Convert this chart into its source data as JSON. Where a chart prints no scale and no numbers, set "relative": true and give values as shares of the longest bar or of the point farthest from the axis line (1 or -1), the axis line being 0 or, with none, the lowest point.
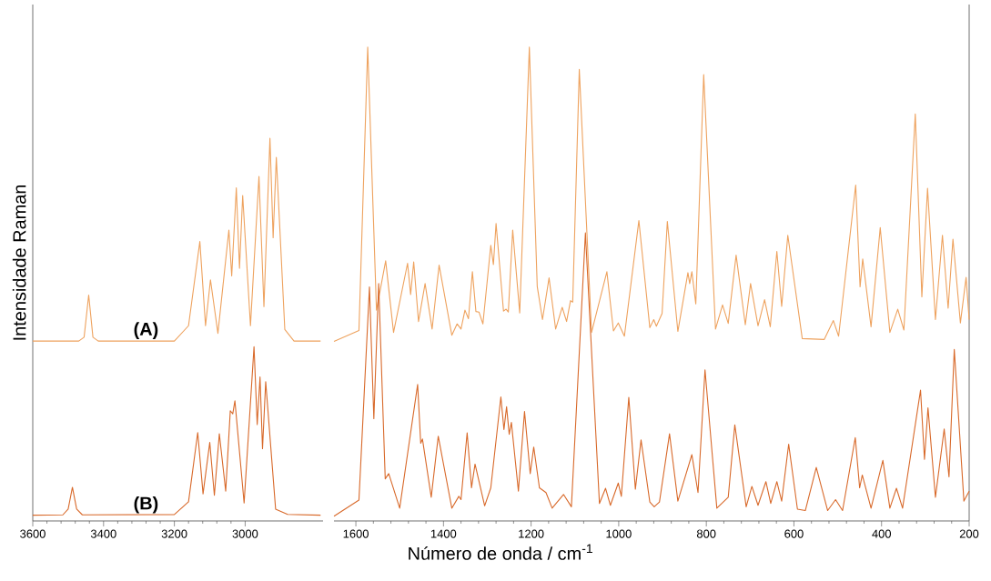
{
  "chart_data": [
    {
      "type": "line",
      "relative": true,
      "ylabel": "Intensidade Raman",
      "xlim": [
        3600,
        2780
      ],
      "xticks": [
        3600,
        3400,
        3200,
        3000
      ],
      "series": [
        {
          "name": "(A)",
          "color": "#eea25e",
          "x": [
            3600,
            3470,
            3455,
            3442,
            3430,
            3415,
            3200,
            3160,
            3128,
            3112,
            3098,
            3077,
            3046,
            3038,
            3025,
            3016,
            3007,
            2985,
            2961,
            2947,
            2930,
            2921,
            2912,
            2888,
            2862,
            2787
          ],
          "values": [
            0.47,
            0.47,
            0.48,
            0.59,
            0.48,
            0.47,
            0.47,
            0.51,
            0.73,
            0.51,
            0.63,
            0.49,
            0.76,
            0.64,
            0.87,
            0.66,
            0.85,
            0.51,
            0.9,
            0.56,
            1.0,
            0.74,
            0.95,
            0.5,
            0.47,
            0.47
          ]
        },
        {
          "name": "(B)",
          "color": "#d8692a",
          "x": [
            3600,
            3515,
            3500,
            3488,
            3476,
            3460,
            3200,
            3160,
            3134,
            3119,
            3100,
            3087,
            3073,
            3055,
            3042,
            3035,
            3029,
            3003,
            2975,
            2966,
            2958,
            2951,
            2942,
            2914,
            2880,
            2787
          ],
          "values": [
            0.015,
            0.016,
            0.031,
            0.088,
            0.031,
            0.016,
            0.017,
            0.05,
            0.231,
            0.071,
            0.205,
            0.067,
            0.228,
            0.078,
            0.288,
            0.28,
            0.314,
            0.047,
            0.455,
            0.252,
            0.376,
            0.189,
            0.364,
            0.031,
            0.017,
            0.015
          ]
        }
      ]
    },
    {
      "type": "line",
      "relative": true,
      "xlabel": "Número de onda / cm$^{-1}$",
      "xlim": [
        1650,
        200
      ],
      "xticks": [
        1600,
        1400,
        1200,
        1000,
        800,
        600,
        400,
        200
      ],
      "series": [
        {
          "color": "#eea25e",
          "x": [
            1650,
            1593,
            1573,
            1553,
            1532,
            1514,
            1482,
            1475,
            1468,
            1457,
            1442,
            1426,
            1410,
            1381,
            1369,
            1360,
            1351,
            1343,
            1334,
            1326,
            1319,
            1310,
            1292,
            1286,
            1280,
            1263,
            1257,
            1252,
            1242,
            1226,
            1204,
            1186,
            1174,
            1159,
            1144,
            1129,
            1119,
            1110,
            1105,
            1090,
            1062,
            1027,
            1012,
            1001,
            987,
            954,
            929,
            920,
            914,
            901,
            889,
            865,
            842,
            838,
            833,
            824,
            806,
            779,
            763,
            750,
            732,
            711,
            699,
            682,
            667,
            654,
            639,
            628,
            614,
            581,
            531,
            510,
            498,
            459,
            449,
            443,
            424,
            403,
            381,
            363,
            349,
            323,
            308,
            295,
            277,
            261,
            248,
            237,
            220,
            207,
            200
          ],
          "values": [
            0.379,
            0.402,
            1.0,
            0.445,
            0.549,
            0.398,
            0.544,
            0.478,
            0.547,
            0.421,
            0.501,
            0.405,
            0.54,
            0.392,
            0.416,
            0.405,
            0.445,
            0.427,
            0.526,
            0.442,
            0.441,
            0.416,
            0.582,
            0.541,
            0.628,
            0.443,
            0.447,
            0.441,
            0.614,
            0.439,
            1.0,
            0.495,
            0.425,
            0.513,
            0.405,
            0.451,
            0.421,
            0.465,
            0.462,
            0.953,
            0.398,
            0.526,
            0.401,
            0.418,
            0.39,
            0.634,
            0.408,
            0.425,
            0.411,
            0.438,
            0.632,
            0.4,
            0.524,
            0.501,
            0.526,
            0.458,
            0.942,
            0.405,
            0.456,
            0.417,
            0.561,
            0.414,
            0.501,
            0.412,
            0.467,
            0.41,
            0.569,
            0.453,
            0.603,
            0.385,
            0.383,
            0.423,
            0.39,
            0.709,
            0.494,
            0.553,
            0.41,
            0.619,
            0.398,
            0.447,
            0.403,
            0.859,
            0.473,
            0.702,
            0.425,
            0.603,
            0.449,
            0.595,
            0.418,
            0.514,
            0.425
          ]
        },
        {
          "color": "#d8692a",
          "x": [
            1650,
            1593,
            1569,
            1559,
            1548,
            1533,
            1525,
            1500,
            1459,
            1452,
            1448,
            1428,
            1412,
            1381,
            1365,
            1360,
            1346,
            1336,
            1328,
            1306,
            1292,
            1269,
            1262,
            1256,
            1250,
            1245,
            1229,
            1215,
            1202,
            1194,
            1181,
            1166,
            1152,
            1126,
            1108,
            1076,
            1044,
            1030,
            1019,
            1001,
            994,
            977,
            962,
            949,
            929,
            919,
            907,
            884,
            865,
            833,
            819,
            803,
            776,
            750,
            735,
            709,
            696,
            682,
            664,
            653,
            639,
            628,
            612,
            592,
            574,
            549,
            523,
            505,
            489,
            460,
            450,
            444,
            424,
            397,
            381,
            366,
            352,
            311,
            302,
            294,
            277,
            257,
            246,
            234,
            212,
            200
          ],
          "values": [
            0.01,
            0.044,
            0.494,
            0.216,
            0.501,
            0.089,
            0.1,
            0.027,
            0.288,
            0.164,
            0.173,
            0.05,
            0.179,
            0.027,
            0.052,
            0.045,
            0.186,
            0.07,
            0.12,
            0.032,
            0.07,
            0.262,
            0.193,
            0.241,
            0.183,
            0.208,
            0.063,
            0.231,
            0.1,
            0.156,
            0.07,
            0.06,
            0.027,
            0.056,
            0.03,
            0.608,
            0.037,
            0.069,
            0.033,
            0.08,
            0.052,
            0.261,
            0.067,
            0.171,
            0.04,
            0.03,
            0.04,
            0.184,
            0.042,
            0.14,
            0.06,
            0.319,
            0.027,
            0.05,
            0.203,
            0.03,
            0.073,
            0.033,
            0.083,
            0.037,
            0.083,
            0.042,
            0.162,
            0.025,
            0.022,
            0.113,
            0.022,
            0.045,
            0.022,
            0.176,
            0.07,
            0.097,
            0.027,
            0.128,
            0.027,
            0.069,
            0.027,
            0.276,
            0.13,
            0.239,
            0.05,
            0.194,
            0.093,
            0.362,
            0.042,
            0.063
          ]
        }
      ]
    }
  ]
}
